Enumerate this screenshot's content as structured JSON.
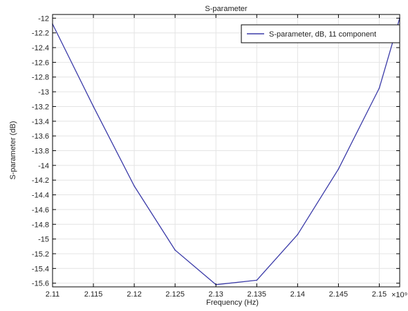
{
  "chart_data": {
    "type": "line",
    "title": "S-parameter",
    "xlabel": "Frequency (Hz)",
    "ylabel": "S-parameter (dB)",
    "x_multiplier_label": "×10⁹",
    "xlim": [
      2.11,
      2.1525
    ],
    "ylim": [
      -15.65,
      -11.95
    ],
    "x_ticks": [
      2.11,
      2.115,
      2.12,
      2.125,
      2.13,
      2.135,
      2.14,
      2.145,
      2.15
    ],
    "x_tick_labels": [
      "2.11",
      "2.115",
      "2.12",
      "2.125",
      "2.13",
      "2.135",
      "2.14",
      "2.145",
      "2.15"
    ],
    "y_ticks": [
      -12,
      -12.2,
      -12.4,
      -12.6,
      -12.8,
      -13,
      -13.2,
      -13.4,
      -13.6,
      -13.8,
      -14,
      -14.2,
      -14.4,
      -14.6,
      -14.8,
      -15,
      -15.2,
      -15.4,
      -15.6
    ],
    "y_tick_labels": [
      "-12",
      "-12.2",
      "-12.4",
      "-12.6",
      "-12.8",
      "-13",
      "-13.2",
      "-13.4",
      "-13.6",
      "-13.8",
      "-14",
      "-14.2",
      "-14.4",
      "-14.6",
      "-14.8",
      "-15",
      "-15.2",
      "-15.4",
      "-15.6"
    ],
    "grid": true,
    "legend_position": "top-right",
    "series": [
      {
        "name": "S-parameter, dB, 11 component",
        "color": "#3a3aa8",
        "x": [
          2.11,
          2.115,
          2.12,
          2.125,
          2.13,
          2.135,
          2.14,
          2.145,
          2.15,
          2.1525
        ],
        "y": [
          -12.08,
          -13.2,
          -14.28,
          -15.15,
          -15.62,
          -15.56,
          -14.94,
          -14.05,
          -12.95,
          -12.0
        ]
      }
    ]
  }
}
